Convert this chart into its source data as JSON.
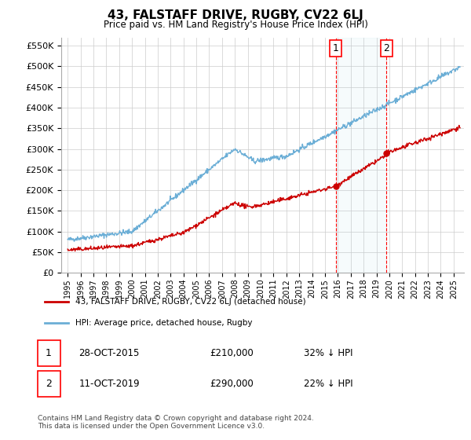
{
  "title": "43, FALSTAFF DRIVE, RUGBY, CV22 6LJ",
  "subtitle": "Price paid vs. HM Land Registry's House Price Index (HPI)",
  "hpi_label": "HPI: Average price, detached house, Rugby",
  "property_label": "43, FALSTAFF DRIVE, RUGBY, CV22 6LJ (detached house)",
  "hpi_color": "#6baed6",
  "property_color": "#cc0000",
  "marker_color": "#cc0000",
  "sale1_year": 2015.83,
  "sale1_price": 210000,
  "sale1_date": "28-OCT-2015",
  "sale1_hpi_pct": "32% ↓ HPI",
  "sale2_year": 2019.79,
  "sale2_price": 290000,
  "sale2_date": "11-OCT-2019",
  "sale2_hpi_pct": "22% ↓ HPI",
  "ylim": [
    0,
    570000
  ],
  "yticks": [
    0,
    50000,
    100000,
    150000,
    200000,
    250000,
    300000,
    350000,
    400000,
    450000,
    500000,
    550000
  ],
  "footer": "Contains HM Land Registry data © Crown copyright and database right 2024.\nThis data is licensed under the Open Government Licence v3.0.",
  "background_color": "#ffffff",
  "grid_color": "#cccccc"
}
